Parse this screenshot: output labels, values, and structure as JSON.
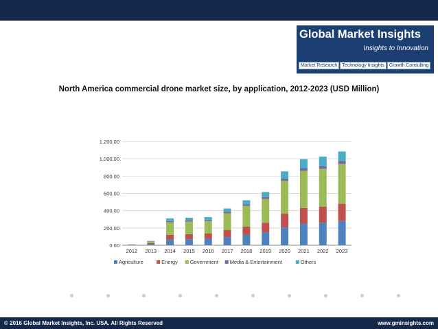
{
  "logo": {
    "title": "Global Market Insights",
    "tagline": "Insights to Innovation",
    "links": [
      "Market Research",
      "Technology Insights",
      "Growth Consulting"
    ]
  },
  "footer": {
    "copyright": "© 2016 Global Market Insights, Inc. USA. All Rights Reserved",
    "website": "www.gminsights.com"
  },
  "colors": {
    "header": "#14284b",
    "logo_bg": "#1c3f73",
    "agriculture": "#4f81bd",
    "energy": "#c0504d",
    "government": "#9bbb59",
    "media": "#8064a2",
    "others": "#4bacc6"
  },
  "chart_data": {
    "type": "bar",
    "stacked": true,
    "title": "North America commercial drone market size, by application, 2012-2023 (USD Million)",
    "categories": [
      "2012",
      "2013",
      "2014",
      "2015",
      "2016",
      "2017",
      "2018",
      "2019",
      "2020",
      "2021",
      "2022",
      "2023"
    ],
    "ylim": [
      0,
      1200
    ],
    "yticks": [
      "0.00",
      "200.00",
      "400.00",
      "600.00",
      "800.00",
      "1,000.00",
      "1,200.00"
    ],
    "ytick_values": [
      0,
      200,
      400,
      600,
      800,
      1000,
      1200
    ],
    "grid": true,
    "legend_position": "bottom",
    "series": [
      {
        "name": "Agriculture",
        "color": "#4f81bd",
        "values": [
          3,
          15,
          65,
          70,
          75,
          95,
          120,
          150,
          205,
          250,
          260,
          280
        ]
      },
      {
        "name": "Energy",
        "color": "#c0504d",
        "values": [
          2,
          10,
          55,
          58,
          60,
          80,
          95,
          110,
          160,
          180,
          185,
          200
        ]
      },
      {
        "name": "Government",
        "color": "#9bbb59",
        "values": [
          4,
          20,
          145,
          145,
          145,
          195,
          240,
          275,
          380,
          430,
          440,
          460
        ]
      },
      {
        "name": "Media & Entertainment",
        "color": "#8064a2",
        "values": [
          1,
          3,
          15,
          15,
          15,
          18,
          20,
          22,
          25,
          30,
          30,
          35
        ]
      },
      {
        "name": "Others",
        "color": "#4bacc6",
        "values": [
          1,
          2,
          30,
          30,
          30,
          37,
          45,
          58,
          85,
          105,
          110,
          110
        ]
      }
    ]
  }
}
